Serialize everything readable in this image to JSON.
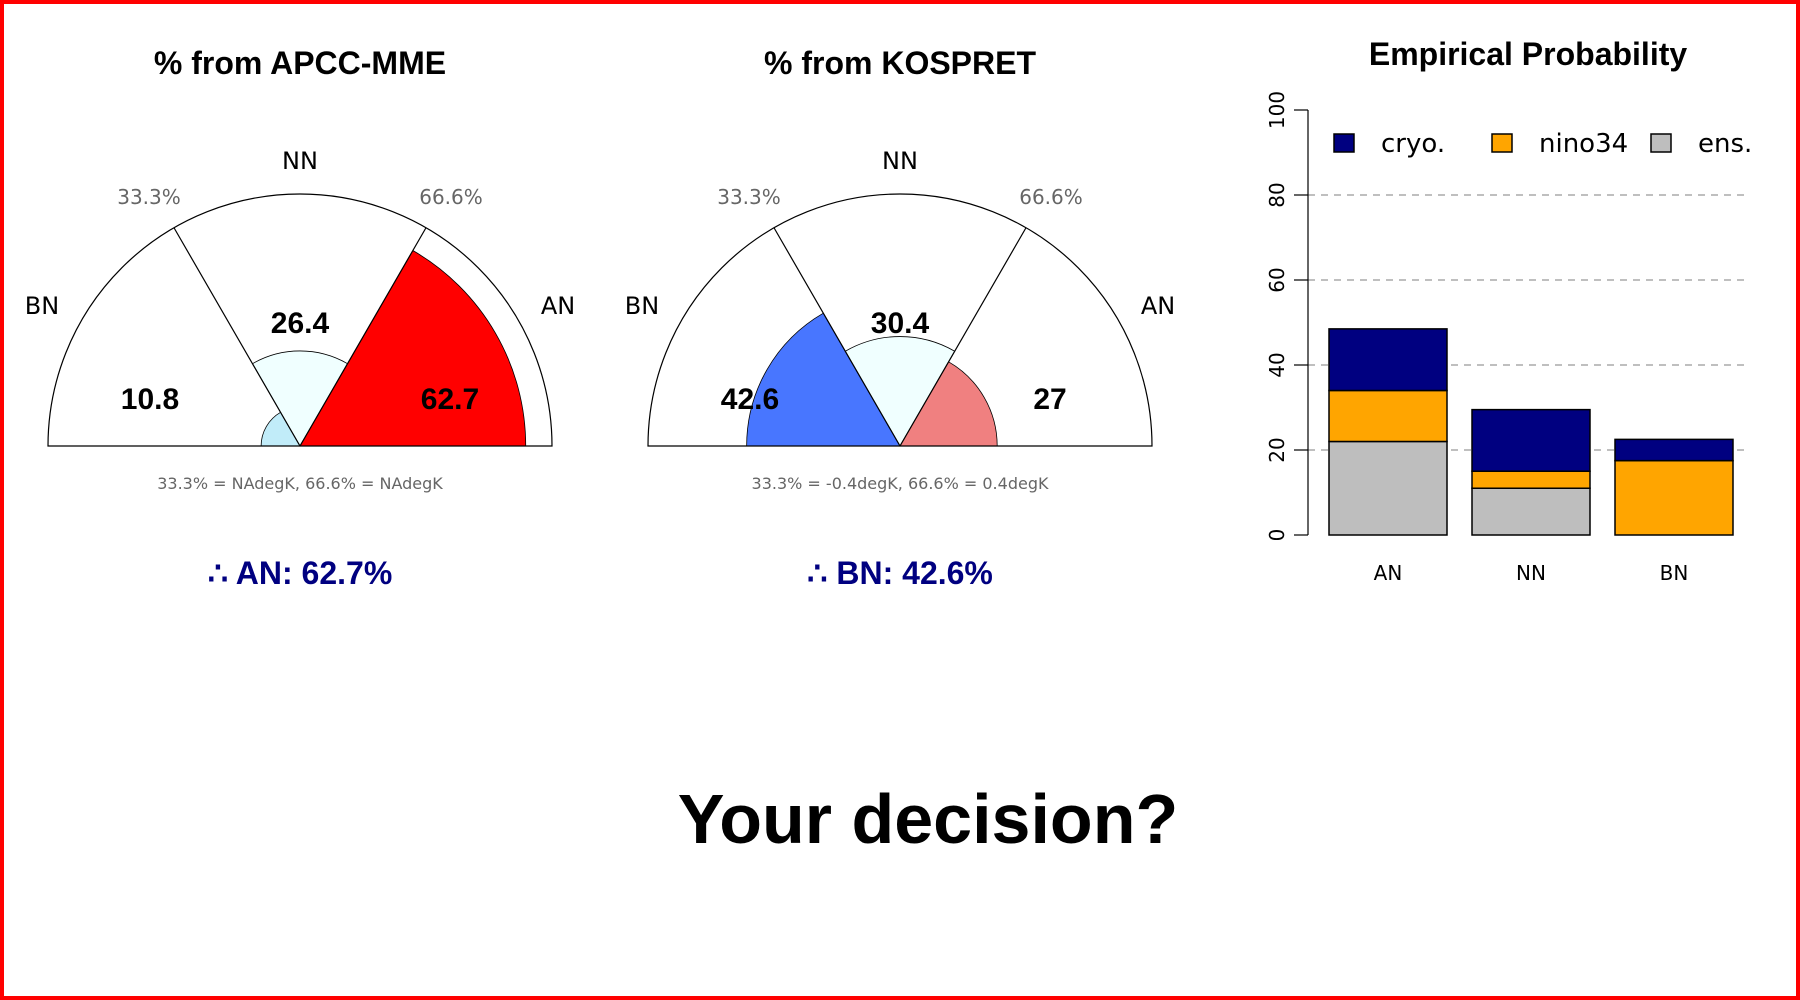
{
  "question": "Your decision?",
  "colors": {
    "frame": "#ff0000",
    "conclusion_text": "#000080",
    "cryo": "#000080",
    "nino34": "#ffa500",
    "ens": "#bebebe"
  },
  "chart_data": [
    {
      "type": "pie",
      "title": "% from APCC-MME",
      "categories": [
        "BN",
        "NN",
        "AN"
      ],
      "values": [
        10.8,
        26.4,
        62.7
      ],
      "sector_colors": [
        "#c1ecf9",
        "#f0ffff",
        "#ff0000"
      ],
      "threshold_labels": [
        "33.3%",
        "66.6%"
      ],
      "footnote": "33.3% = NAdegK,  66.6% = NAdegK",
      "conclusion": "∴ AN: 62.7%"
    },
    {
      "type": "pie",
      "title": "% from KOSPRET",
      "categories": [
        "BN",
        "NN",
        "AN"
      ],
      "values": [
        42.6,
        30.4,
        27
      ],
      "sector_colors": [
        "#4876ff",
        "#f0ffff",
        "#f08080"
      ],
      "threshold_labels": [
        "33.3%",
        "66.6%"
      ],
      "footnote": "33.3% = -0.4degK,  66.6% = 0.4degK",
      "conclusion": "∴ BN: 42.6%"
    },
    {
      "type": "bar",
      "stacked": true,
      "title": "Empirical Probability",
      "categories": [
        "AN",
        "NN",
        "BN"
      ],
      "series": [
        {
          "name": "ens.",
          "color": "#bebebe",
          "values": [
            22,
            11,
            0
          ]
        },
        {
          "name": "nino34",
          "color": "#ffa500",
          "values": [
            12,
            4,
            17.5
          ]
        },
        {
          "name": "cryo.",
          "color": "#000080",
          "values": [
            14.5,
            14.5,
            5
          ]
        }
      ],
      "legend_order": [
        "cryo.",
        "nino34",
        "ens."
      ],
      "legend_position": "top",
      "ylim": [
        0,
        100
      ],
      "yticks": [
        "0",
        "20",
        "40",
        "60",
        "80",
        "100"
      ],
      "grid": "dashed horizontal at 20, 40, 60, 80"
    }
  ]
}
